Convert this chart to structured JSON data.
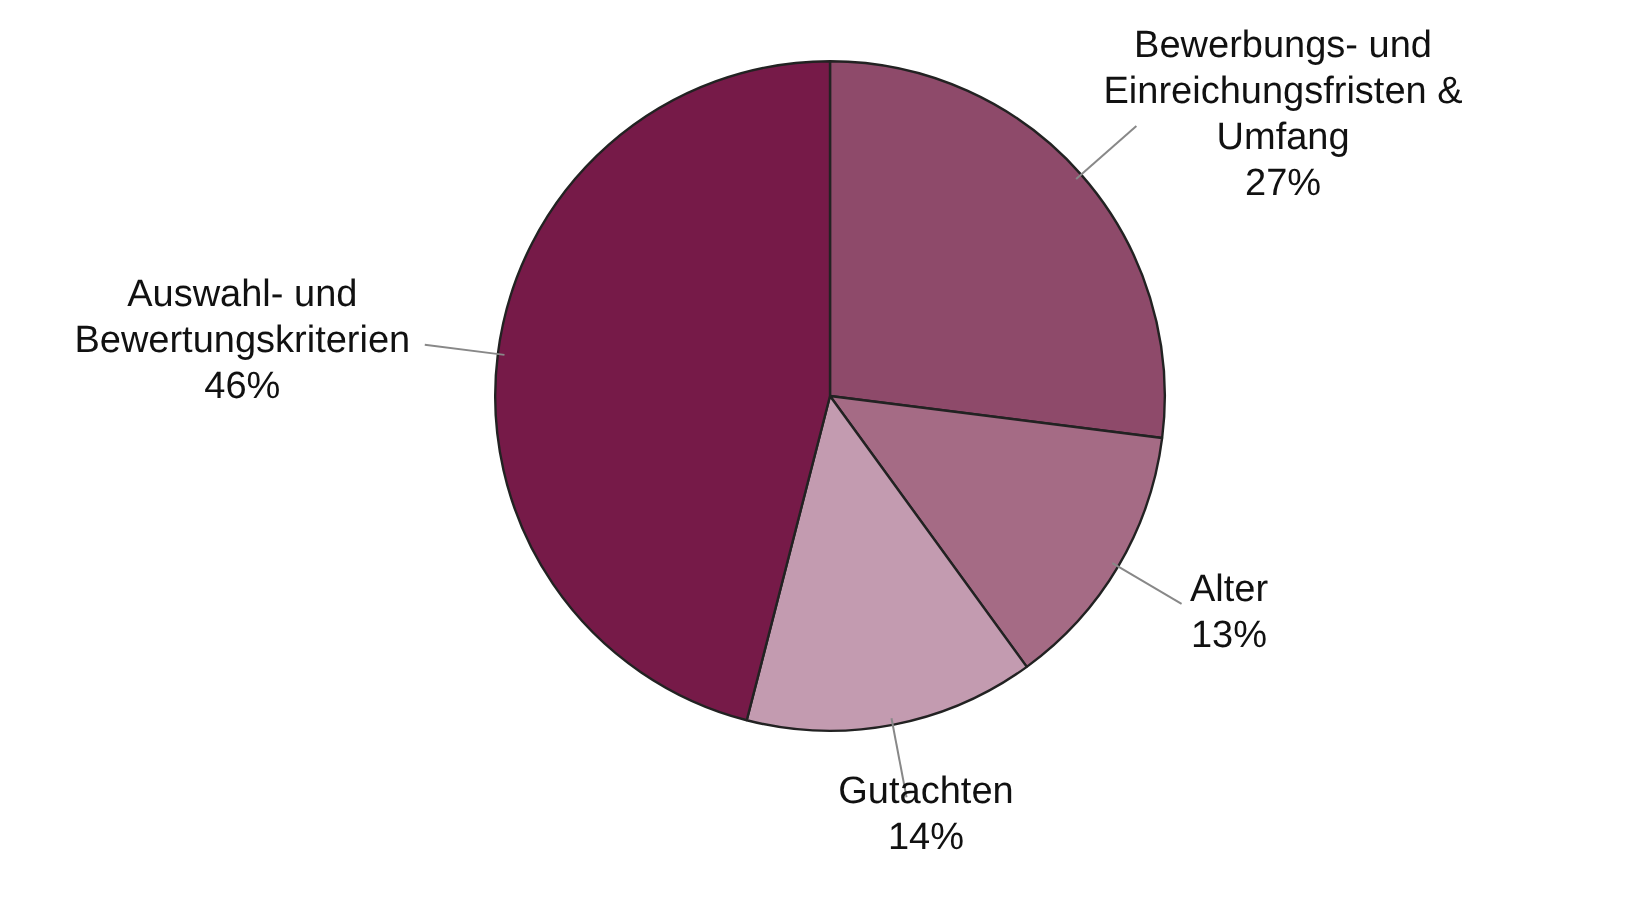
{
  "chart_data": {
    "type": "pie",
    "categories": [
      "Bewerbungs- und\nEinreichungsfristen &\nUmfang",
      "Alter",
      "Gutachten",
      "Auswahl- und\nBewertungskriterien"
    ],
    "values": [
      27,
      13,
      14,
      46
    ],
    "value_labels": [
      "27%",
      "13%",
      "14%",
      "46%"
    ],
    "colors": [
      "#8e4a6a",
      "#a56b85",
      "#c39bb0",
      "#761a48"
    ],
    "legend": false
  }
}
